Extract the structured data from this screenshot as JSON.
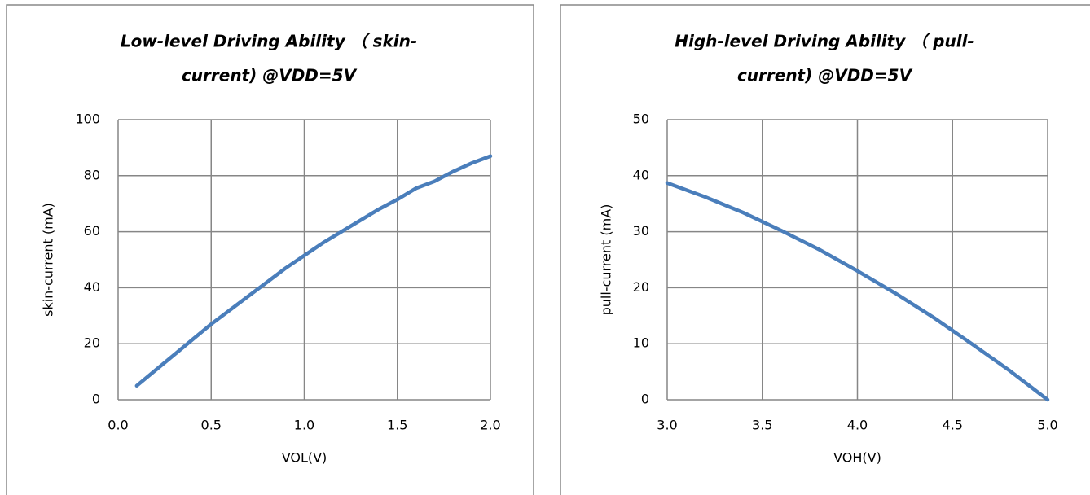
{
  "chart_data": [
    {
      "type": "line",
      "title": [
        "Low-level Driving Ability （ skin-",
        "current) @VDD=5V"
      ],
      "x_label": "VOL(V)",
      "y_label": "skin-current (mA)",
      "x": [
        0.1,
        0.2,
        0.3,
        0.4,
        0.5,
        0.6,
        0.7,
        0.8,
        0.9,
        1.0,
        1.1,
        1.2,
        1.3,
        1.4,
        1.5,
        1.6,
        1.7,
        1.8,
        1.9,
        2.0
      ],
      "series": [
        {
          "color": "#4a7ebb",
          "values": [
            5,
            10.5,
            16,
            21.5,
            27,
            32,
            37,
            42,
            47,
            51.5,
            56,
            60,
            64,
            68,
            71.5,
            75.5,
            78,
            81.5,
            84.5,
            87
          ]
        }
      ],
      "xlim": [
        0,
        2
      ],
      "xticks": [
        {
          "value": 0,
          "label": "0.0"
        },
        0.5,
        {
          "value": 1,
          "label": "1.0"
        },
        1.5,
        {
          "value": 2,
          "label": "2.0"
        }
      ],
      "ylim": [
        0,
        100
      ],
      "yticks": [
        0,
        20,
        40,
        60,
        80,
        100
      ],
      "grid": true
    },
    {
      "type": "line",
      "title": [
        "High-level Driving Ability （ pull-",
        "current) @VDD=5V"
      ],
      "x_label": "VOH(V)",
      "y_label": "pull-current (mA)",
      "x": [
        3.0,
        3.2,
        3.4,
        3.6,
        3.8,
        4.0,
        4.2,
        4.4,
        4.6,
        4.8,
        5.0
      ],
      "series": [
        {
          "color": "#4a7ebb",
          "values": [
            38.7,
            36.2,
            33.4,
            30.2,
            26.8,
            23,
            19,
            14.7,
            10,
            5.2,
            0
          ]
        }
      ],
      "xlim": [
        3,
        5
      ],
      "xticks": [
        {
          "value": 3,
          "label": "3.0"
        },
        3.5,
        {
          "value": 4,
          "label": "4.0"
        },
        4.5,
        {
          "value": 5,
          "label": "5.0"
        }
      ],
      "ylim": [
        0,
        50
      ],
      "yticks": [
        0,
        10,
        20,
        30,
        40,
        50
      ],
      "grid": true
    }
  ]
}
